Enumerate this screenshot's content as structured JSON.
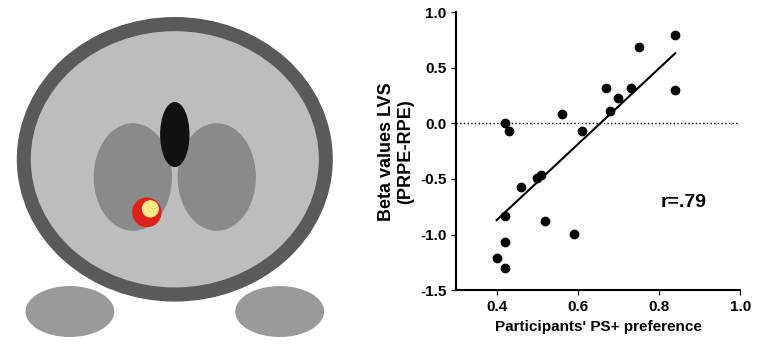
{
  "chart_data": {
    "type": "scatter",
    "xlabel": "Participants' PS+ preference",
    "ylabel": "Beta values LVS\n(PRPE-RPE)",
    "annotation": "r=.79",
    "x": [
      0.4,
      0.42,
      0.42,
      0.42,
      0.42,
      0.43,
      0.46,
      0.5,
      0.51,
      0.52,
      0.56,
      0.59,
      0.61,
      0.67,
      0.68,
      0.7,
      0.73,
      0.75,
      0.84,
      0.84
    ],
    "values": [
      -1.21,
      -1.3,
      -1.07,
      -0.83,
      0.0,
      -0.07,
      -0.57,
      -0.49,
      -0.46,
      -0.88,
      0.08,
      -0.99,
      -0.07,
      0.32,
      0.11,
      0.23,
      0.32,
      0.69,
      0.79,
      0.3
    ],
    "trend_line": {
      "x": [
        0.4,
        0.84
      ],
      "y": [
        -0.87,
        0.63
      ]
    },
    "hline": 0,
    "color": "#000000",
    "marker": "o",
    "xlim": [
      0.3,
      1.0
    ],
    "ylim": [
      -1.5,
      1.0
    ],
    "xticks": [
      0.4,
      0.6,
      0.8,
      {
        "value": 1,
        "label": "1.0"
      }
    ],
    "yticks": [
      -1.5,
      {
        "value": -1,
        "label": "-1.0"
      },
      -0.5,
      {
        "value": 0,
        "label": "0.0"
      },
      0.5,
      {
        "value": 1,
        "label": "1.0"
      }
    ],
    "grid": false
  }
}
